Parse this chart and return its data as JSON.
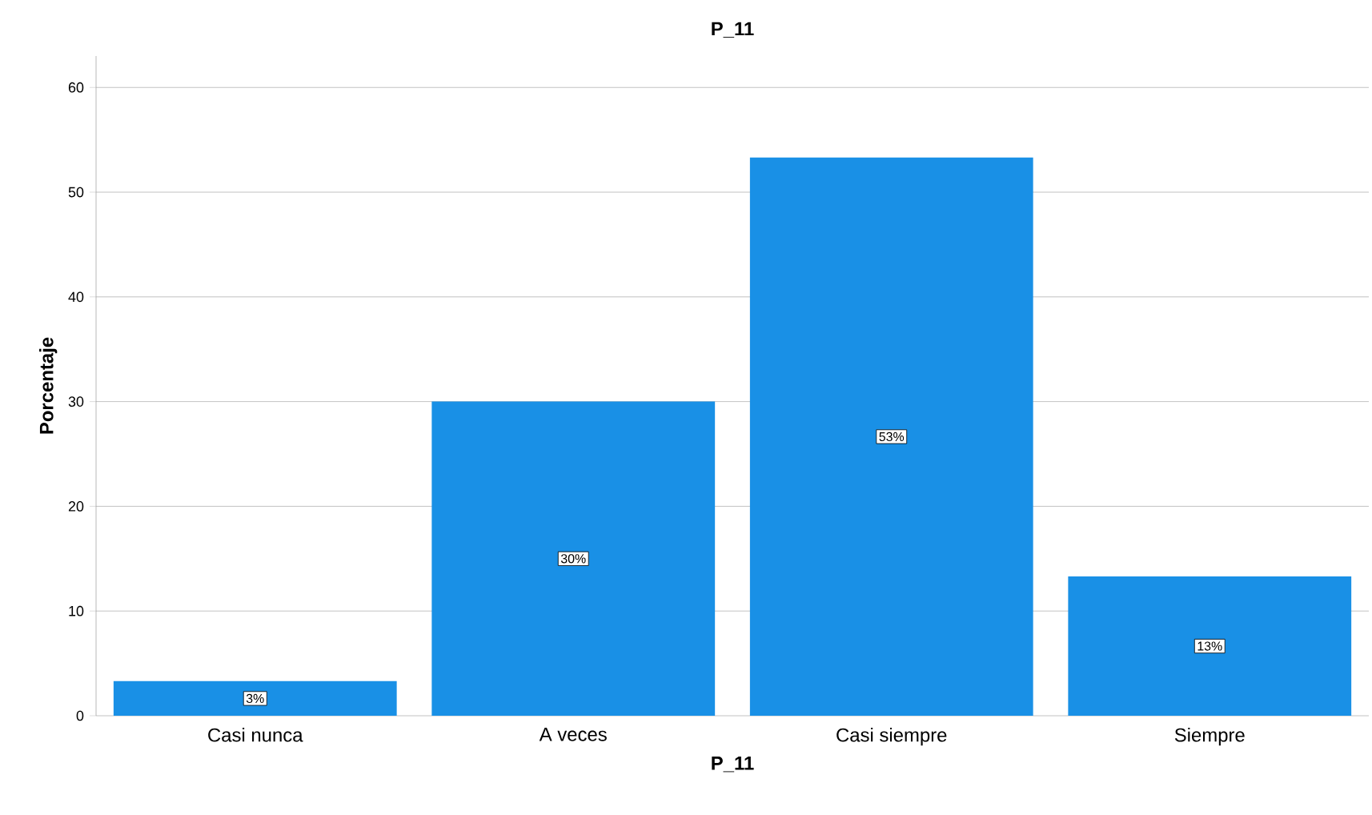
{
  "chart_data": {
    "type": "bar",
    "title": "P_11",
    "xlabel": "P_11",
    "ylabel": "Porcentaje",
    "categories": [
      "Casi nunca",
      "A veces",
      "Casi siempre",
      "Siempre"
    ],
    "values": [
      3.3,
      30,
      53.3,
      13.3
    ],
    "value_labels": [
      "3%",
      "30%",
      "53%",
      "13%"
    ],
    "color": "#1990e6",
    "ylim": [
      0,
      63
    ],
    "yticks": [
      0,
      10,
      20,
      30,
      40,
      50,
      60
    ],
    "grid": "y"
  }
}
